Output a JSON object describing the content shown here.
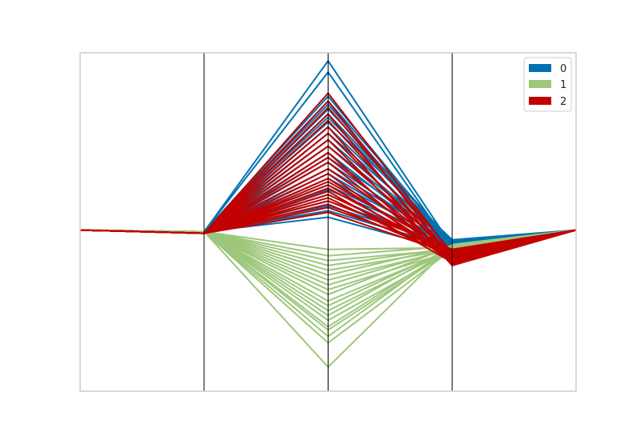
{
  "chart_data": {
    "type": "line",
    "subtype": "parallel-coordinates",
    "title": "",
    "xlabel": "",
    "ylabel": "",
    "axes_count": 5,
    "x": [
      0,
      1,
      2,
      3,
      4
    ],
    "ylim": [
      -1.0,
      1.1
    ],
    "grid": false,
    "ticks_visible": false,
    "legend": {
      "placement": "top-right",
      "entries": [
        "0",
        "1",
        "2"
      ]
    },
    "colors": {
      "0": "#0072b2",
      "1": "#9dc77b",
      "2": "#c20000",
      "axis_line": "#000000",
      "frame": "#cccccc"
    },
    "series": [
      {
        "name": "0",
        "color": "#0072b2",
        "profiles": [
          [
            0.0,
            -0.01,
            1.05,
            -0.1,
            0.0
          ],
          [
            0.0,
            -0.01,
            0.98,
            -0.12,
            0.0
          ],
          [
            0.0,
            -0.01,
            0.83,
            -0.1,
            0.0
          ],
          [
            0.0,
            -0.01,
            0.8,
            -0.08,
            0.0
          ],
          [
            0.0,
            -0.01,
            0.78,
            -0.12,
            0.0
          ],
          [
            0.0,
            -0.01,
            0.75,
            -0.07,
            0.0
          ],
          [
            0.0,
            -0.01,
            0.72,
            -0.09,
            0.0
          ],
          [
            0.0,
            -0.01,
            0.7,
            -0.1,
            0.0
          ],
          [
            0.0,
            -0.01,
            0.67,
            -0.06,
            0.0
          ],
          [
            0.0,
            -0.01,
            0.64,
            -0.11,
            0.0
          ],
          [
            0.0,
            -0.01,
            0.6,
            -0.08,
            0.0
          ],
          [
            0.0,
            -0.01,
            0.56,
            -0.1,
            0.0
          ],
          [
            0.0,
            -0.01,
            0.52,
            -0.09,
            0.0
          ],
          [
            0.0,
            -0.01,
            0.48,
            -0.12,
            0.0
          ],
          [
            0.0,
            -0.01,
            0.45,
            -0.07,
            0.0
          ],
          [
            0.0,
            -0.01,
            0.42,
            -0.1,
            0.0
          ],
          [
            0.0,
            -0.01,
            0.38,
            -0.08,
            0.0
          ],
          [
            0.0,
            -0.01,
            0.35,
            -0.11,
            0.0
          ],
          [
            0.0,
            -0.01,
            0.32,
            -0.09,
            0.0
          ],
          [
            0.0,
            -0.01,
            0.28,
            -0.1,
            0.0
          ],
          [
            0.0,
            -0.01,
            0.25,
            -0.08,
            0.0
          ],
          [
            0.0,
            -0.01,
            0.22,
            -0.12,
            0.0
          ],
          [
            0.0,
            -0.01,
            0.18,
            -0.1,
            0.0
          ],
          [
            0.0,
            -0.01,
            0.15,
            -0.09,
            0.0
          ],
          [
            0.0,
            -0.01,
            0.12,
            -0.11,
            0.0
          ],
          [
            0.0,
            -0.01,
            0.08,
            -0.13,
            0.0
          ]
        ]
      },
      {
        "name": "1",
        "color": "#9dc77b",
        "profiles": [
          [
            0.0,
            -0.01,
            -0.85,
            -0.09,
            0.0
          ],
          [
            0.0,
            -0.01,
            -0.7,
            -0.12,
            0.0
          ],
          [
            0.0,
            -0.01,
            -0.66,
            -0.1,
            0.0
          ],
          [
            0.0,
            -0.01,
            -0.62,
            -0.12,
            0.0
          ],
          [
            0.0,
            -0.01,
            -0.6,
            -0.11,
            0.0
          ],
          [
            0.0,
            -0.01,
            -0.56,
            -0.13,
            0.0
          ],
          [
            0.0,
            -0.01,
            -0.53,
            -0.1,
            0.0
          ],
          [
            0.0,
            -0.01,
            -0.5,
            -0.12,
            0.0
          ],
          [
            0.0,
            -0.01,
            -0.47,
            -0.11,
            0.0
          ],
          [
            0.0,
            -0.01,
            -0.44,
            -0.12,
            0.0
          ],
          [
            0.0,
            -0.01,
            -0.4,
            -0.1,
            0.0
          ],
          [
            0.0,
            -0.01,
            -0.37,
            -0.13,
            0.0
          ],
          [
            0.0,
            -0.01,
            -0.34,
            -0.11,
            0.0
          ],
          [
            0.0,
            -0.01,
            -0.31,
            -0.12,
            0.0
          ],
          [
            0.0,
            -0.01,
            -0.28,
            -0.1,
            0.0
          ],
          [
            0.0,
            -0.01,
            -0.25,
            -0.12,
            0.0
          ],
          [
            0.0,
            -0.01,
            -0.22,
            -0.11,
            0.0
          ],
          [
            0.0,
            -0.01,
            -0.19,
            -0.12,
            0.0
          ],
          [
            0.0,
            -0.01,
            -0.16,
            -0.1,
            0.0
          ],
          [
            0.0,
            -0.01,
            -0.12,
            -0.11,
            0.0
          ]
        ]
      },
      {
        "name": "2",
        "color": "#c20000",
        "profiles": [
          [
            0.0,
            -0.02,
            0.85,
            -0.15,
            0.0
          ],
          [
            0.0,
            -0.02,
            0.8,
            -0.18,
            0.0
          ],
          [
            0.0,
            -0.02,
            0.76,
            -0.14,
            0.0
          ],
          [
            0.0,
            -0.02,
            0.72,
            -0.2,
            0.0
          ],
          [
            0.0,
            -0.02,
            0.68,
            -0.16,
            0.0
          ],
          [
            0.0,
            -0.02,
            0.64,
            -0.22,
            0.0
          ],
          [
            0.0,
            -0.02,
            0.6,
            -0.17,
            0.0
          ],
          [
            0.0,
            -0.02,
            0.56,
            -0.2,
            0.0
          ],
          [
            0.0,
            -0.02,
            0.52,
            -0.14,
            0.0
          ],
          [
            0.0,
            -0.02,
            0.48,
            -0.21,
            0.0
          ],
          [
            0.0,
            -0.02,
            0.45,
            -0.16,
            0.0
          ],
          [
            0.0,
            -0.02,
            0.42,
            -0.19,
            0.0
          ],
          [
            0.0,
            -0.02,
            0.38,
            -0.15,
            0.0
          ],
          [
            0.0,
            -0.02,
            0.35,
            -0.2,
            0.0
          ],
          [
            0.0,
            -0.02,
            0.32,
            -0.17,
            0.0
          ],
          [
            0.0,
            -0.02,
            0.3,
            -0.13,
            0.0
          ],
          [
            0.0,
            -0.02,
            0.28,
            -0.18,
            0.0
          ],
          [
            0.0,
            -0.02,
            0.26,
            -0.15,
            0.0
          ],
          [
            0.0,
            -0.02,
            0.24,
            -0.2,
            0.0
          ],
          [
            0.0,
            -0.02,
            0.22,
            -0.14,
            0.0
          ],
          [
            0.0,
            -0.02,
            0.2,
            -0.17,
            0.0
          ],
          [
            0.0,
            -0.02,
            0.18,
            -0.12,
            0.0
          ],
          [
            0.0,
            -0.02,
            0.16,
            -0.16,
            0.0
          ],
          [
            0.0,
            -0.02,
            0.14,
            -0.13,
            0.0
          ],
          [
            0.0,
            -0.02,
            0.11,
            -0.15,
            0.0
          ]
        ]
      }
    ]
  }
}
